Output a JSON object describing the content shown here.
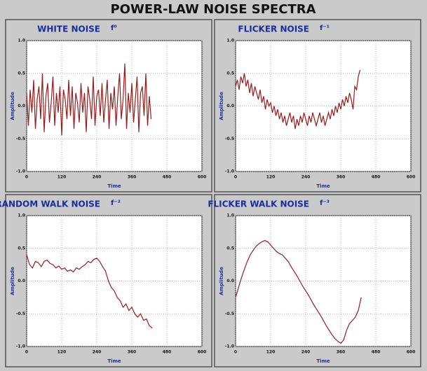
{
  "title": "POWER-LAW NOISE SPECTRA",
  "chart_data": [
    {
      "type": "line",
      "title": "WHITE NOISE",
      "spectrum": "f⁰",
      "xlabel": "Time",
      "ylabel": "Amplitude",
      "color": "#9b1b1b",
      "grid": true,
      "xlim": [
        0,
        600
      ],
      "xticks": [
        0,
        120,
        240,
        360,
        480,
        600
      ],
      "ylim": [
        -1,
        1
      ],
      "yticks": [
        {
          "value": -1,
          "label": "-1.0"
        },
        -0.5,
        {
          "value": 0,
          "label": "0.0"
        },
        0.5,
        {
          "value": 1,
          "label": "1.0"
        }
      ],
      "x": [
        0,
        6,
        12,
        18,
        24,
        30,
        36,
        42,
        48,
        54,
        60,
        66,
        72,
        78,
        84,
        90,
        96,
        102,
        108,
        114,
        120,
        126,
        132,
        138,
        144,
        150,
        156,
        162,
        168,
        174,
        180,
        186,
        192,
        198,
        204,
        210,
        216,
        222,
        228,
        234,
        240,
        246,
        252,
        258,
        264,
        270,
        276,
        282,
        288,
        294,
        300,
        306,
        312,
        318,
        324,
        330,
        336,
        342,
        348,
        354,
        360,
        366,
        372,
        378,
        384,
        390,
        396,
        402,
        408,
        414,
        420,
        426
      ],
      "values": [
        0.2,
        -0.3,
        0.25,
        -0.1,
        0.4,
        -0.35,
        0.1,
        0.3,
        -0.2,
        0.5,
        -0.4,
        0.15,
        0.35,
        -0.25,
        0.05,
        0.45,
        -0.3,
        0.2,
        -0.1,
        0.3,
        -0.45,
        0.25,
        0.1,
        -0.2,
        0.4,
        -0.15,
        0.3,
        -0.35,
        0.2,
        0.05,
        -0.25,
        0.35,
        -0.1,
        0.2,
        -0.4,
        0.3,
        0.1,
        -0.2,
        0.45,
        -0.3,
        0.15,
        0.25,
        -0.15,
        0.35,
        -0.25,
        0.1,
        0.4,
        -0.35,
        0.2,
        -0.05,
        0.3,
        -0.3,
        0.15,
        0.5,
        -0.2,
        0.1,
        0.65,
        -0.35,
        0.2,
        -0.1,
        0.35,
        -0.25,
        0.1,
        0.45,
        -0.4,
        0.2,
        0.3,
        -0.15,
        0.5,
        -0.3,
        0.15,
        -0.2
      ]
    },
    {
      "type": "line",
      "title": "FLICKER NOISE",
      "spectrum": "f⁻¹",
      "xlabel": "Time",
      "ylabel": "Amplitude",
      "color": "#9b1b1b",
      "grid": true,
      "xlim": [
        0,
        600
      ],
      "xticks": [
        0,
        120,
        240,
        360,
        480,
        600
      ],
      "ylim": [
        -1,
        1
      ],
      "yticks": [
        {
          "value": -1,
          "label": "-1.0"
        },
        -0.5,
        {
          "value": 0,
          "label": "0.0"
        },
        0.5,
        {
          "value": 1,
          "label": "1.0"
        }
      ],
      "x": [
        0,
        6,
        12,
        18,
        24,
        30,
        36,
        42,
        48,
        54,
        60,
        66,
        72,
        78,
        84,
        90,
        96,
        102,
        108,
        114,
        120,
        126,
        132,
        138,
        144,
        150,
        156,
        162,
        168,
        174,
        180,
        186,
        192,
        198,
        204,
        210,
        216,
        222,
        228,
        234,
        240,
        246,
        252,
        258,
        264,
        270,
        276,
        282,
        288,
        294,
        300,
        306,
        312,
        318,
        324,
        330,
        336,
        342,
        348,
        354,
        360,
        366,
        372,
        378,
        384,
        390,
        396,
        402,
        408,
        414,
        420,
        426
      ],
      "values": [
        0.3,
        0.4,
        0.25,
        0.45,
        0.35,
        0.5,
        0.3,
        0.4,
        0.2,
        0.35,
        0.15,
        0.3,
        0.2,
        0.1,
        0.25,
        0.05,
        0.15,
        -0.05,
        0.1,
        0.0,
        0.05,
        -0.1,
        0.0,
        -0.15,
        -0.05,
        -0.2,
        -0.1,
        -0.25,
        -0.15,
        -0.3,
        -0.2,
        -0.1,
        -0.25,
        -0.15,
        -0.35,
        -0.2,
        -0.3,
        -0.15,
        -0.25,
        -0.1,
        -0.2,
        -0.3,
        -0.15,
        -0.25,
        -0.1,
        -0.2,
        -0.3,
        -0.2,
        -0.1,
        -0.25,
        -0.15,
        -0.3,
        -0.2,
        -0.1,
        -0.2,
        -0.05,
        -0.15,
        0.0,
        -0.1,
        0.05,
        -0.05,
        0.1,
        0.0,
        0.15,
        0.05,
        0.2,
        0.1,
        -0.05,
        0.3,
        0.25,
        0.45,
        0.55
      ]
    },
    {
      "type": "line",
      "title": "RANDOM WALK NOISE",
      "spectrum": "f⁻²",
      "xlabel": "Time",
      "ylabel": "Amplitude",
      "color": "#9b1b1b",
      "grid": true,
      "xlim": [
        0,
        600
      ],
      "xticks": [
        0,
        120,
        240,
        360,
        480,
        600
      ],
      "ylim": [
        -1,
        1
      ],
      "yticks": [
        {
          "value": -1,
          "label": "-1.0"
        },
        -0.5,
        {
          "value": 0,
          "label": "0.0"
        },
        0.5,
        {
          "value": 1,
          "label": "1.0"
        }
      ],
      "x": [
        0,
        10,
        20,
        30,
        40,
        50,
        60,
        70,
        80,
        90,
        100,
        110,
        120,
        130,
        140,
        150,
        160,
        170,
        180,
        190,
        200,
        210,
        220,
        230,
        240,
        250,
        260,
        270,
        280,
        290,
        300,
        310,
        320,
        330,
        340,
        350,
        360,
        370,
        380,
        390,
        400,
        410,
        420,
        430
      ],
      "values": [
        0.4,
        0.25,
        0.2,
        0.3,
        0.28,
        0.22,
        0.3,
        0.32,
        0.27,
        0.25,
        0.2,
        0.23,
        0.18,
        0.2,
        0.15,
        0.17,
        0.14,
        0.2,
        0.18,
        0.22,
        0.25,
        0.3,
        0.28,
        0.33,
        0.35,
        0.3,
        0.22,
        0.15,
        0.0,
        -0.1,
        -0.15,
        -0.25,
        -0.3,
        -0.4,
        -0.35,
        -0.45,
        -0.4,
        -0.5,
        -0.55,
        -0.5,
        -0.6,
        -0.58,
        -0.68,
        -0.72
      ]
    },
    {
      "type": "line",
      "title": "FLICKER WALK NOISE",
      "spectrum": "f⁻³",
      "xlabel": "Time",
      "ylabel": "Amplitude",
      "color": "#9b1b1b",
      "grid": true,
      "xlim": [
        0,
        600
      ],
      "xticks": [
        0,
        120,
        240,
        360,
        480,
        600
      ],
      "ylim": [
        -1,
        1
      ],
      "yticks": [
        {
          "value": -1,
          "label": "-1.0"
        },
        -0.5,
        {
          "value": 0,
          "label": "0.0"
        },
        0.5,
        {
          "value": 1,
          "label": "1.0"
        }
      ],
      "x": [
        0,
        10,
        20,
        30,
        40,
        50,
        60,
        70,
        80,
        90,
        100,
        110,
        120,
        130,
        140,
        150,
        160,
        170,
        180,
        190,
        200,
        210,
        220,
        230,
        240,
        250,
        260,
        270,
        280,
        290,
        300,
        310,
        320,
        330,
        340,
        350,
        360,
        370,
        380,
        390,
        400,
        410,
        420,
        430
      ],
      "values": [
        -0.25,
        -0.1,
        0.05,
        0.18,
        0.3,
        0.4,
        0.47,
        0.53,
        0.57,
        0.6,
        0.62,
        0.6,
        0.55,
        0.5,
        0.45,
        0.42,
        0.4,
        0.35,
        0.3,
        0.22,
        0.15,
        0.08,
        0.0,
        -0.08,
        -0.15,
        -0.22,
        -0.3,
        -0.38,
        -0.45,
        -0.52,
        -0.6,
        -0.68,
        -0.75,
        -0.82,
        -0.88,
        -0.92,
        -0.95,
        -0.9,
        -0.75,
        -0.65,
        -0.6,
        -0.55,
        -0.45,
        -0.25
      ]
    }
  ]
}
